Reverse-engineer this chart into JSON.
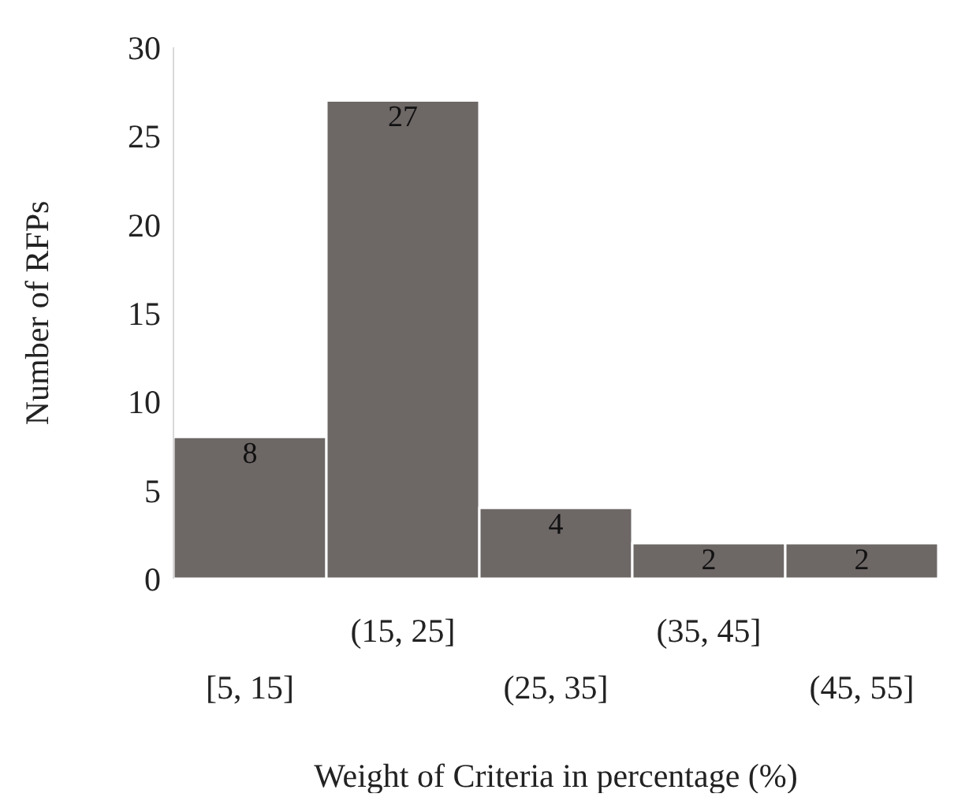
{
  "chart_data": {
    "type": "bar",
    "xlabel": "Weight of Criteria in percentage (%)",
    "ylabel": "Number of RFPs",
    "categories": [
      "[5, 15]",
      "(15, 25]",
      "(25, 35]",
      "(35, 45]",
      "(45, 55]"
    ],
    "values": [
      8,
      27,
      4,
      2,
      2
    ],
    "color": "#6d6766",
    "ylim": [
      0,
      30
    ],
    "yticks": [
      0,
      5,
      10,
      15,
      20,
      25,
      30
    ],
    "grid": false,
    "data_labels": true
  }
}
